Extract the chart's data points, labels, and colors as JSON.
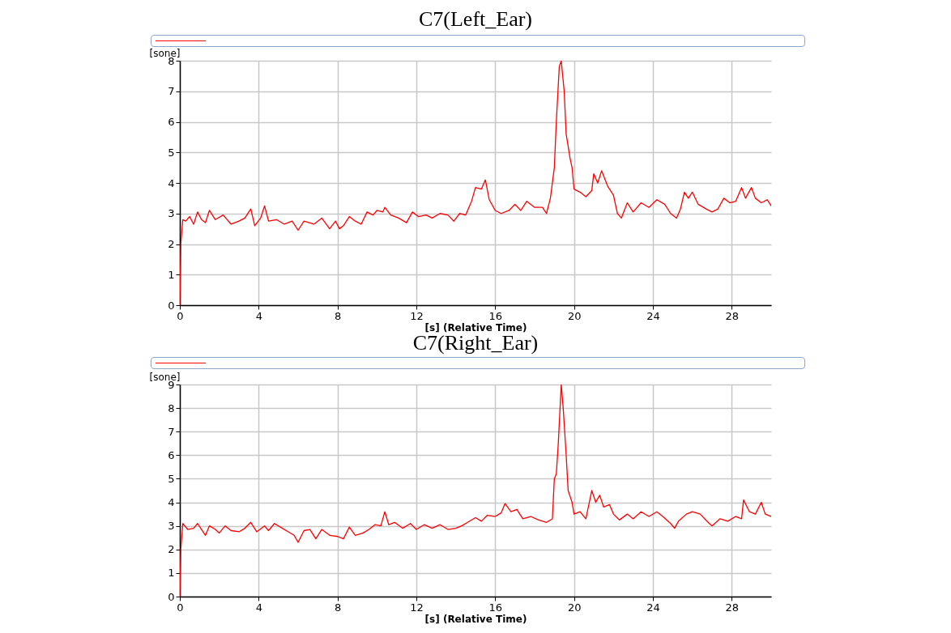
{
  "chart_data": [
    {
      "type": "line",
      "title": "C7(Left_Ear)",
      "xlabel": "[s] (Relative Time)",
      "ylabel": "[sone]",
      "xlim": [
        0,
        30
      ],
      "xticks": [
        0,
        4,
        8,
        12,
        16,
        20,
        24,
        28
      ],
      "ylim": [
        0,
        8
      ],
      "yticks": [
        0,
        1,
        2,
        3,
        4,
        5,
        6,
        7,
        8
      ],
      "grid": true,
      "series": [
        {
          "color": "#ff0000",
          "x": [
            0,
            0.05,
            0.15,
            0.3,
            0.5,
            0.7,
            0.9,
            1.1,
            1.3,
            1.5,
            1.8,
            2.2,
            2.6,
            3.0,
            3.3,
            3.6,
            3.8,
            4.1,
            4.3,
            4.5,
            4.9,
            5.3,
            5.7,
            6.0,
            6.3,
            6.8,
            7.2,
            7.6,
            7.9,
            8.1,
            8.3,
            8.6,
            8.9,
            9.2,
            9.5,
            9.8,
            10.0,
            10.3,
            10.4,
            10.7,
            11.1,
            11.5,
            11.8,
            12.1,
            12.5,
            12.8,
            13.2,
            13.6,
            13.9,
            14.2,
            14.5,
            14.8,
            15.0,
            15.3,
            15.5,
            15.7,
            16.0,
            16.3,
            16.7,
            17.0,
            17.3,
            17.6,
            18.0,
            18.4,
            18.6,
            18.8,
            19.0,
            19.1,
            19.25,
            19.35,
            19.5,
            19.6,
            19.8,
            19.9,
            20.0,
            20.3,
            20.6,
            20.9,
            21.0,
            21.2,
            21.4,
            21.7,
            22.0,
            22.2,
            22.4,
            22.7,
            23.0,
            23.4,
            23.8,
            24.2,
            24.6,
            24.9,
            25.2,
            25.4,
            25.6,
            25.8,
            26.0,
            26.3,
            26.7,
            27.0,
            27.3,
            27.6,
            27.9,
            28.2,
            28.5,
            28.7,
            29.0,
            29.2,
            29.5,
            29.8,
            30.0
          ],
          "values": [
            0,
            2.0,
            2.8,
            2.75,
            2.9,
            2.65,
            3.05,
            2.8,
            2.7,
            3.1,
            2.8,
            2.95,
            2.65,
            2.75,
            2.85,
            3.15,
            2.6,
            2.85,
            3.25,
            2.75,
            2.8,
            2.65,
            2.75,
            2.45,
            2.75,
            2.65,
            2.85,
            2.5,
            2.75,
            2.5,
            2.6,
            2.9,
            2.75,
            2.65,
            3.05,
            2.95,
            3.1,
            3.05,
            3.2,
            2.95,
            2.85,
            2.7,
            3.05,
            2.9,
            2.95,
            2.85,
            3.0,
            2.95,
            2.75,
            3.0,
            2.95,
            3.4,
            3.85,
            3.8,
            4.1,
            3.45,
            3.1,
            3.0,
            3.1,
            3.3,
            3.1,
            3.4,
            3.2,
            3.2,
            3.0,
            3.5,
            4.5,
            6.0,
            7.8,
            8.0,
            7.0,
            5.6,
            4.8,
            4.5,
            3.8,
            3.7,
            3.55,
            3.75,
            4.3,
            4.0,
            4.4,
            3.9,
            3.6,
            3.0,
            2.85,
            3.35,
            3.05,
            3.35,
            3.2,
            3.45,
            3.3,
            3.0,
            2.85,
            3.15,
            3.7,
            3.5,
            3.7,
            3.3,
            3.15,
            3.05,
            3.15,
            3.5,
            3.35,
            3.4,
            3.85,
            3.5,
            3.85,
            3.5,
            3.35,
            3.45,
            3.25
          ]
        }
      ]
    },
    {
      "type": "line",
      "title": "C7(Right_Ear)",
      "xlabel": "[s] (Relative Time)",
      "ylabel": "[sone]",
      "xlim": [
        0,
        30
      ],
      "xticks": [
        0,
        4,
        8,
        12,
        16,
        20,
        24,
        28
      ],
      "ylim": [
        0,
        9
      ],
      "yticks": [
        0,
        1,
        2,
        3,
        4,
        5,
        6,
        7,
        8,
        9
      ],
      "grid": true,
      "series": [
        {
          "color": "#ff0000",
          "x": [
            0,
            0.05,
            0.15,
            0.4,
            0.7,
            0.9,
            1.1,
            1.3,
            1.5,
            1.8,
            2.0,
            2.3,
            2.6,
            3.0,
            3.3,
            3.6,
            3.9,
            4.3,
            4.5,
            4.8,
            5.2,
            5.5,
            5.8,
            6.0,
            6.3,
            6.6,
            6.9,
            7.2,
            7.6,
            8.0,
            8.3,
            8.6,
            8.9,
            9.3,
            9.6,
            9.9,
            10.2,
            10.4,
            10.6,
            10.9,
            11.3,
            11.7,
            12.0,
            12.4,
            12.8,
            13.2,
            13.6,
            14.0,
            14.3,
            14.6,
            15.0,
            15.3,
            15.6,
            16.0,
            16.3,
            16.5,
            16.8,
            17.1,
            17.4,
            17.8,
            18.2,
            18.6,
            18.9,
            19.0,
            19.1,
            19.2,
            19.35,
            19.45,
            19.6,
            19.7,
            19.9,
            20.0,
            20.3,
            20.6,
            20.8,
            20.9,
            21.1,
            21.3,
            21.5,
            21.8,
            22.0,
            22.3,
            22.7,
            23.0,
            23.4,
            23.8,
            24.2,
            24.5,
            24.9,
            25.1,
            25.3,
            25.7,
            26.0,
            26.4,
            26.8,
            27.0,
            27.4,
            27.8,
            28.2,
            28.5,
            28.6,
            28.9,
            29.2,
            29.5,
            29.7,
            30.0
          ],
          "values": [
            0,
            2.0,
            3.1,
            2.85,
            2.9,
            3.1,
            2.85,
            2.6,
            3.0,
            2.85,
            2.7,
            3.0,
            2.8,
            2.75,
            2.9,
            3.15,
            2.75,
            3.0,
            2.8,
            3.1,
            2.9,
            2.75,
            2.6,
            2.3,
            2.8,
            2.85,
            2.45,
            2.85,
            2.6,
            2.55,
            2.45,
            2.95,
            2.6,
            2.7,
            2.85,
            3.05,
            3.0,
            3.6,
            3.05,
            3.15,
            2.9,
            3.1,
            2.85,
            3.05,
            2.9,
            3.05,
            2.85,
            2.9,
            3.0,
            3.15,
            3.35,
            3.2,
            3.45,
            3.4,
            3.55,
            3.95,
            3.6,
            3.7,
            3.3,
            3.4,
            3.25,
            3.15,
            3.3,
            5.0,
            5.2,
            6.5,
            9.0,
            8.0,
            6.0,
            4.5,
            4.0,
            3.5,
            3.6,
            3.3,
            4.1,
            4.5,
            4.0,
            4.3,
            3.8,
            3.9,
            3.5,
            3.25,
            3.5,
            3.3,
            3.6,
            3.4,
            3.6,
            3.4,
            3.1,
            2.9,
            3.2,
            3.5,
            3.6,
            3.5,
            3.15,
            3.0,
            3.3,
            3.2,
            3.4,
            3.3,
            4.1,
            3.6,
            3.5,
            4.0,
            3.5,
            3.4
          ]
        }
      ]
    }
  ]
}
